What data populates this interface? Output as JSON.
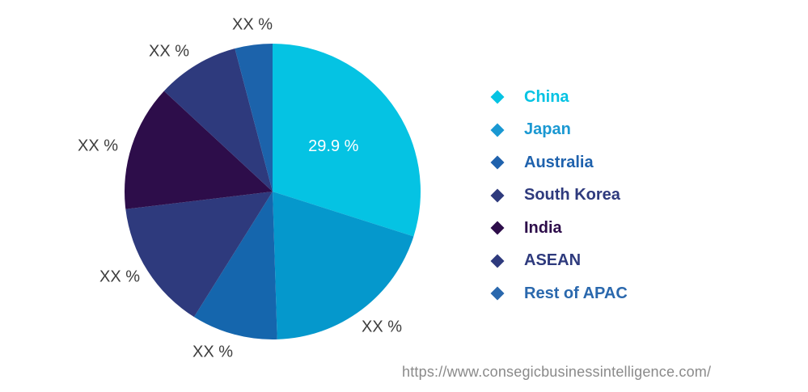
{
  "chart_data": {
    "type": "pie",
    "slices": [
      {
        "name": "China",
        "value": 29.9,
        "label": "29.9 %",
        "color": "#05c3e3"
      },
      {
        "name": "Japan",
        "value": 19.6,
        "label": "XX %",
        "color": "#0598cc"
      },
      {
        "name": "Australia",
        "value": 9.4,
        "label": "XX %",
        "color": "#1566ad"
      },
      {
        "name": "South Korea",
        "value": 14.2,
        "label": "XX %",
        "color": "#2e3a7d"
      },
      {
        "name": "India",
        "value": 13.8,
        "label": "XX %",
        "color": "#2d0d4a"
      },
      {
        "name": "ASEAN",
        "value": 9.0,
        "label": "XX %",
        "color": "#2e3a7d"
      },
      {
        "name": "Rest of APAC",
        "value": 4.1,
        "label": "XX %",
        "color": "#1c63ab"
      }
    ],
    "legend": {
      "placement": "right",
      "items": [
        {
          "label": "China",
          "color": "#05c3e3"
        },
        {
          "label": "Japan",
          "color": "#1a98d2"
        },
        {
          "label": "Australia",
          "color": "#1f62ad"
        },
        {
          "label": "South Korea",
          "color": "#2e3a7d"
        },
        {
          "label": "India",
          "color": "#2d0d4a"
        },
        {
          "label": "ASEAN",
          "color": "#2e3a7d"
        },
        {
          "label": "Rest of APAC",
          "color": "#2a68ad"
        }
      ]
    }
  },
  "source_url": "https://www.consegicbusinessintelligence.com/"
}
